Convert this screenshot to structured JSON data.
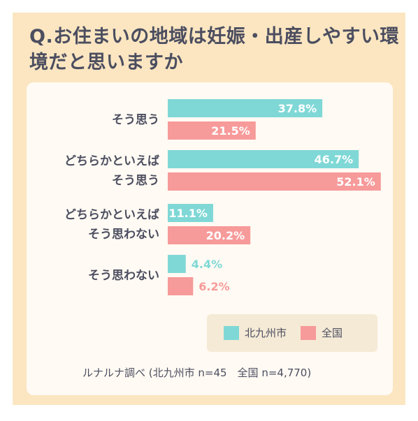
{
  "title": "Q.お住まいの地域は妊娠・出産しやすい環境だと思いますか",
  "legend": [
    {
      "label": "北九州市",
      "color": "#7fd8d6"
    },
    {
      "label": "全国",
      "color": "#f79a9a"
    }
  ],
  "source": "ルナルナ調べ (北九州市 n=45　全国 n=4,770)",
  "chart_data": {
    "type": "bar",
    "orientation": "horizontal",
    "categories": [
      [
        "そう思う"
      ],
      [
        "どちらかといえば",
        "そう思う"
      ],
      [
        "どちらかといえば",
        "そう思わない"
      ],
      [
        "そう思わない"
      ]
    ],
    "series": [
      {
        "name": "北九州市",
        "color": "#7fd8d6",
        "values": [
          37.8,
          46.7,
          11.1,
          4.4
        ],
        "labels": [
          "37.8%",
          "46.7%",
          "11.1%",
          "4.4%"
        ]
      },
      {
        "name": "全国",
        "color": "#f79a9a",
        "values": [
          21.5,
          52.1,
          20.2,
          6.2
        ],
        "labels": [
          "21.5%",
          "52.1%",
          "20.2%",
          "6.2%"
        ]
      }
    ]
  }
}
